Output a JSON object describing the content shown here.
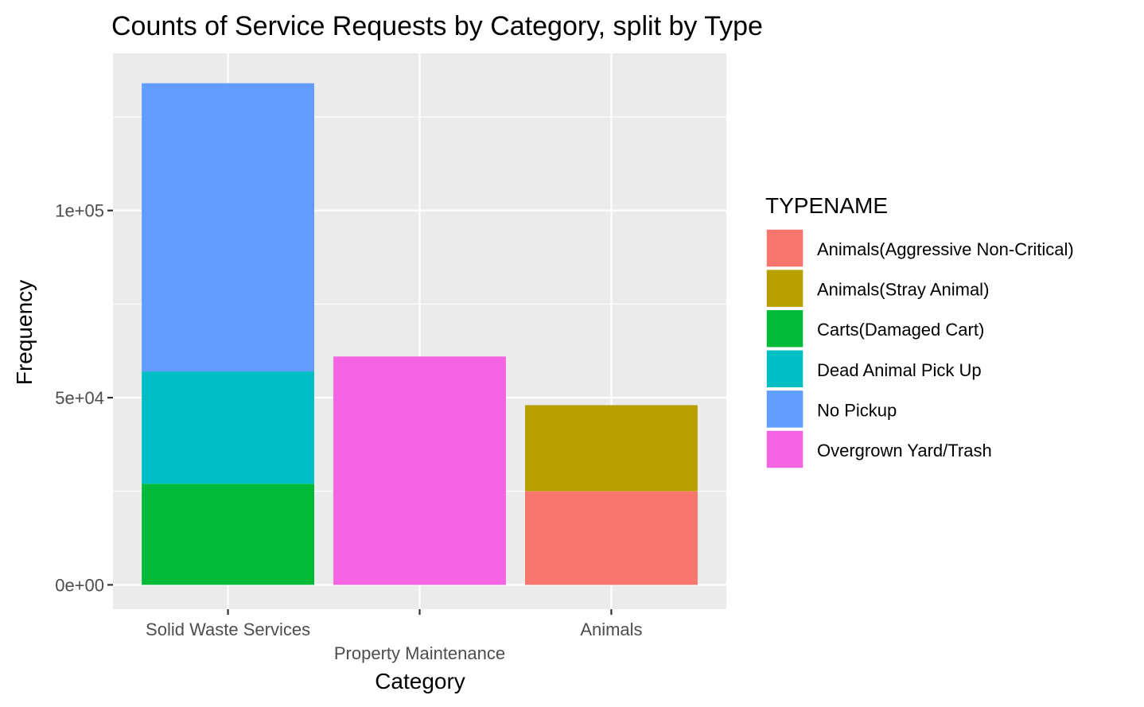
{
  "chart_data": {
    "type": "bar",
    "stacked": true,
    "title": "Counts of Service Requests by Category, split by Type",
    "xlabel": "Category",
    "ylabel": "Frequency",
    "categories": [
      "Solid Waste Services",
      "Property Maintenance",
      "Animals"
    ],
    "ylim": [
      -6500,
      142000
    ],
    "yticks": [
      0,
      50000,
      100000
    ],
    "ytick_labels": [
      "0e+00",
      "5e+04",
      "1e+05"
    ],
    "grid": true,
    "legend": {
      "title": "TYPENAME",
      "placement": "right"
    },
    "series": [
      {
        "name": "Animals(Aggressive Non-Critical)",
        "color": "#F8766D",
        "values": [
          0,
          0,
          25000
        ]
      },
      {
        "name": "Animals(Stray Animal)",
        "color": "#B79F00",
        "values": [
          0,
          0,
          23000
        ]
      },
      {
        "name": "Carts(Damaged Cart)",
        "color": "#00BA38",
        "values": [
          27000,
          0,
          0
        ]
      },
      {
        "name": "Dead Animal Pick Up",
        "color": "#00BFC4",
        "values": [
          30000,
          0,
          0
        ]
      },
      {
        "name": "No Pickup",
        "color": "#619CFF",
        "values": [
          77000,
          0,
          0
        ]
      },
      {
        "name": "Overgrown Yard/Trash",
        "color": "#F564E3",
        "values": [
          0,
          61000,
          0
        ]
      }
    ]
  }
}
